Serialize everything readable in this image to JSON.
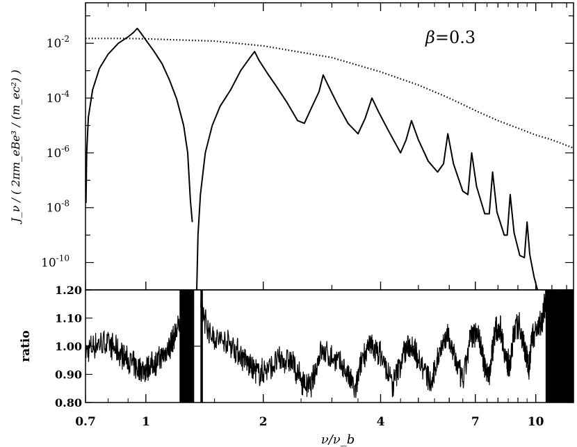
{
  "chart_data": [
    {
      "type": "line",
      "panel": "top",
      "x_scale": "log",
      "y_scale": "log",
      "xlim": [
        0.7,
        12.5
      ],
      "ylim": [
        1e-11,
        0.3
      ],
      "grid": false,
      "legend": "none",
      "ylabel": "J_ν / ( 2πm_eBe³ / (m_ec²) )",
      "yticks": [
        {
          "value": 0.01,
          "label": "10",
          "exp": "-2"
        },
        {
          "value": 0.0001,
          "label": "10",
          "exp": "-4"
        },
        {
          "value": 1e-06,
          "label": "10",
          "exp": "-6"
        },
        {
          "value": 1e-08,
          "label": "10",
          "exp": "-8"
        },
        {
          "value": 1e-10,
          "label": "10",
          "exp": "-10"
        }
      ],
      "annotation": {
        "symbol": "β",
        "text": "=0.3"
      },
      "series": [
        {
          "style": "solid",
          "points": [
            [
              0.702,
              1.5e-08
            ],
            [
              0.705,
              1e-06
            ],
            [
              0.712,
              2e-05
            ],
            [
              0.73,
              0.0002
            ],
            [
              0.76,
              0.0012
            ],
            [
              0.8,
              0.004
            ],
            [
              0.85,
              0.01
            ],
            [
              0.9,
              0.017
            ],
            [
              0.93,
              0.025
            ],
            [
              0.95,
              0.035
            ],
            [
              0.97,
              0.024
            ],
            [
              1.0,
              0.013
            ],
            [
              1.05,
              0.005
            ],
            [
              1.1,
              0.0018
            ],
            [
              1.15,
              0.00045
            ],
            [
              1.2,
              9e-05
            ],
            [
              1.25,
              1e-05
            ],
            [
              1.28,
              1e-06
            ],
            [
              1.3,
              2e-08
            ],
            [
              1.315,
              3e-09
            ]
          ]
        },
        {
          "style": "solid",
          "points": [
            [
              1.35,
              1e-11
            ],
            [
              1.36,
              1e-09
            ],
            [
              1.38,
              3e-08
            ],
            [
              1.42,
              1e-06
            ],
            [
              1.48,
              1e-05
            ],
            [
              1.55,
              5e-05
            ],
            [
              1.65,
              0.0002
            ],
            [
              1.75,
              0.001
            ],
            [
              1.85,
              0.003
            ],
            [
              1.9,
              0.005
            ],
            [
              1.95,
              0.0024
            ],
            [
              2.05,
              0.0008
            ],
            [
              2.15,
              0.0003
            ],
            [
              2.3,
              7e-05
            ],
            [
              2.45,
              1.5e-05
            ],
            [
              2.55,
              1.2e-05
            ],
            [
              2.65,
              4e-05
            ],
            [
              2.78,
              0.00017
            ],
            [
              2.85,
              0.0007
            ],
            [
              2.95,
              0.00025
            ],
            [
              3.1,
              6e-05
            ],
            [
              3.3,
              1.2e-05
            ],
            [
              3.5,
              5e-06
            ],
            [
              3.65,
              1.8e-05
            ],
            [
              3.8,
              0.0001
            ],
            [
              3.95,
              3.2e-05
            ],
            [
              4.2,
              6e-06
            ],
            [
              4.5,
              1e-06
            ],
            [
              4.65,
              3e-06
            ],
            [
              4.8,
              1.5e-05
            ],
            [
              5.0,
              3e-06
            ],
            [
              5.3,
              5e-07
            ],
            [
              5.6,
              2e-07
            ],
            [
              5.8,
              4e-07
            ],
            [
              5.95,
              5e-06
            ],
            [
              6.15,
              4e-07
            ],
            [
              6.5,
              4e-08
            ],
            [
              6.7,
              3e-08
            ],
            [
              6.85,
              1e-06
            ],
            [
              7.05,
              6e-08
            ],
            [
              7.4,
              6e-09
            ],
            [
              7.6,
              6e-09
            ],
            [
              7.75,
              2e-07
            ],
            [
              7.95,
              7e-09
            ],
            [
              8.3,
              1e-09
            ],
            [
              8.45,
              1e-09
            ],
            [
              8.6,
              3e-08
            ],
            [
              8.8,
              1.2e-09
            ],
            [
              9.1,
              1.8e-10
            ],
            [
              9.35,
              1.5e-10
            ],
            [
              9.5,
              3e-09
            ],
            [
              9.65,
              2e-10
            ],
            [
              9.9,
              3e-11
            ],
            [
              10.1,
              1e-11
            ]
          ]
        },
        {
          "style": "dotted",
          "points": [
            [
              0.7,
              0.015
            ],
            [
              0.9,
              0.015
            ],
            [
              1.0,
              0.0145
            ],
            [
              1.5,
              0.012
            ],
            [
              2.0,
              0.008
            ],
            [
              3.0,
              0.003
            ],
            [
              4.0,
              0.0009
            ],
            [
              5.0,
              0.0003
            ],
            [
              6.0,
              0.0001
            ],
            [
              7.0,
              3.5e-05
            ],
            [
              8.0,
              1.5e-05
            ],
            [
              9.0,
              8e-06
            ],
            [
              10.0,
              4.5e-06
            ],
            [
              11.0,
              3e-06
            ],
            [
              12.5,
              1.5e-06
            ]
          ]
        }
      ]
    },
    {
      "type": "line",
      "panel": "bottom",
      "x_scale": "log",
      "xlim": [
        0.7,
        12.5
      ],
      "ylim": [
        0.8,
        1.2
      ],
      "ylabel": "ratio",
      "xlabel": "ν/ν_b",
      "yticks": [
        "0.80",
        "0.90",
        "1.00",
        "1.10",
        "1.20"
      ],
      "xticks": [
        {
          "value": 0.7,
          "label": "0.7"
        },
        {
          "value": 1,
          "label": "1"
        },
        {
          "value": 2,
          "label": "2"
        },
        {
          "value": 4,
          "label": "4"
        },
        {
          "value": 7,
          "label": "7"
        },
        {
          "value": 10,
          "label": "10"
        }
      ],
      "series": [
        {
          "style": "noisy-solid",
          "points": [
            [
              0.7,
              0.98
            ],
            [
              0.75,
              1.01
            ],
            [
              0.8,
              1.01
            ],
            [
              0.85,
              0.98
            ],
            [
              0.9,
              0.95
            ],
            [
              0.95,
              0.92
            ],
            [
              1.0,
              0.92
            ],
            [
              1.05,
              0.94
            ],
            [
              1.1,
              0.96
            ],
            [
              1.15,
              1.0
            ],
            [
              1.2,
              1.05
            ],
            [
              1.25,
              1.12
            ],
            [
              1.3,
              1.2
            ]
          ]
        },
        {
          "style": "noisy-solid",
          "points": [
            [
              1.38,
              1.15
            ],
            [
              1.45,
              1.05
            ],
            [
              1.55,
              1.02
            ],
            [
              1.65,
              1.01
            ],
            [
              1.75,
              0.97
            ],
            [
              1.85,
              0.93
            ],
            [
              1.95,
              0.9
            ],
            [
              2.05,
              0.92
            ],
            [
              2.2,
              0.95
            ],
            [
              2.35,
              0.95
            ],
            [
              2.5,
              0.88
            ],
            [
              2.65,
              0.85
            ],
            [
              2.8,
              0.98
            ],
            [
              3.0,
              0.96
            ],
            [
              3.2,
              0.93
            ],
            [
              3.45,
              0.84
            ],
            [
              3.6,
              0.97
            ],
            [
              3.8,
              1.0
            ],
            [
              4.0,
              0.97
            ],
            [
              4.3,
              0.86
            ],
            [
              4.6,
              0.98
            ],
            [
              4.8,
              1.01
            ],
            [
              5.0,
              0.96
            ],
            [
              5.4,
              0.86
            ],
            [
              5.7,
              1.0
            ],
            [
              5.95,
              1.04
            ],
            [
              6.2,
              0.96
            ],
            [
              6.5,
              0.87
            ],
            [
              6.8,
              1.03
            ],
            [
              7.1,
              1.06
            ],
            [
              7.4,
              0.92
            ],
            [
              7.6,
              0.9
            ],
            [
              7.85,
              1.05
            ],
            [
              8.1,
              1.07
            ],
            [
              8.4,
              0.95
            ],
            [
              8.6,
              0.93
            ],
            [
              8.8,
              1.06
            ],
            [
              9.1,
              1.07
            ],
            [
              9.4,
              0.98
            ],
            [
              9.6,
              0.93
            ],
            [
              9.8,
              1.04
            ],
            [
              10.1,
              1.06
            ],
            [
              10.4,
              1.1
            ],
            [
              10.7,
              1.2
            ]
          ]
        }
      ]
    }
  ]
}
